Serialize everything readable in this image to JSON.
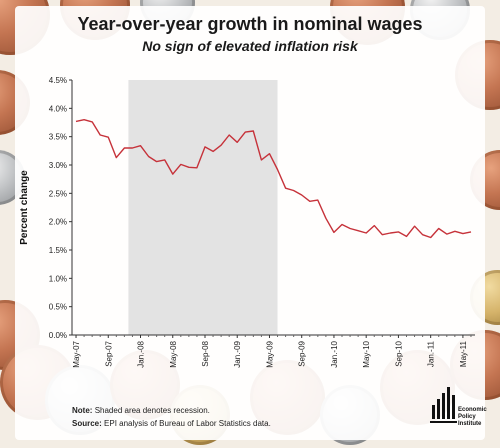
{
  "title": "Year-over-year growth in nominal wages",
  "subtitle": "No sign of elevated inflation risk",
  "notes": {
    "note_label": "Note:",
    "note_text": "Shaded area denotes recession.",
    "source_label": "Source:",
    "source_text": "EPI analysis of Bureau of Labor Statistics data."
  },
  "logo": {
    "line1": "Economic",
    "line2": "Policy",
    "line3": "Institute"
  },
  "chart_data": {
    "type": "line",
    "title": "Year-over-year growth in nominal wages",
    "subtitle": "No sign of elevated inflation risk",
    "xlabel": "",
    "ylabel": "Percent change",
    "ylim": [
      0,
      4.5
    ],
    "yticks": [
      "0.0%",
      "0.5%",
      "1.0%",
      "1.5%",
      "2.0%",
      "2.5%",
      "3.0%",
      "3.5%",
      "4.0%",
      "4.5%"
    ],
    "xtick_labels": [
      "May-07",
      "Sep-07",
      "Jan.-08",
      "May-08",
      "Sep-08",
      "Jan.-09",
      "May-09",
      "Sep-09",
      "Jan.-10",
      "May-10",
      "Sep-10",
      "Jan.-11",
      "May-11"
    ],
    "x": [
      "May-07",
      "Jun-07",
      "Jul-07",
      "Aug-07",
      "Sep-07",
      "Oct-07",
      "Nov-07",
      "Dec-07",
      "Jan-08",
      "Feb-08",
      "Mar-08",
      "Apr-08",
      "May-08",
      "Jun-08",
      "Jul-08",
      "Aug-08",
      "Sep-08",
      "Oct-08",
      "Nov-08",
      "Dec-08",
      "Jan-09",
      "Feb-09",
      "Mar-09",
      "Apr-09",
      "May-09",
      "Jun-09",
      "Jul-09",
      "Aug-09",
      "Sep-09",
      "Oct-09",
      "Nov-09",
      "Dec-09",
      "Jan-10",
      "Feb-10",
      "Mar-10",
      "Apr-10",
      "May-10",
      "Jun-10",
      "Jul-10",
      "Aug-10",
      "Sep-10",
      "Oct-10",
      "Nov-10",
      "Dec-10",
      "Jan-11",
      "Feb-11",
      "Mar-11",
      "Apr-11",
      "May-11",
      "Jun-11"
    ],
    "series": [
      {
        "values": [
          3.77,
          3.8,
          3.76,
          3.53,
          3.49,
          3.13,
          3.3,
          3.3,
          3.34,
          3.15,
          3.06,
          3.09,
          2.84,
          3.01,
          2.96,
          2.95,
          3.32,
          3.24,
          3.35,
          3.53,
          3.4,
          3.58,
          3.6,
          3.09,
          3.2,
          2.92,
          2.59,
          2.55,
          2.47,
          2.36,
          2.38,
          2.06,
          1.81,
          1.95,
          1.88,
          1.84,
          1.8,
          1.93,
          1.77,
          1.8,
          1.82,
          1.74,
          1.92,
          1.77,
          1.72,
          1.88,
          1.78,
          1.83,
          1.79,
          1.82
        ],
        "color": "#c6323a"
      }
    ],
    "recession": {
      "start": "Dec-07",
      "end": "Jun-09"
    },
    "grid": false,
    "legend": "none"
  }
}
